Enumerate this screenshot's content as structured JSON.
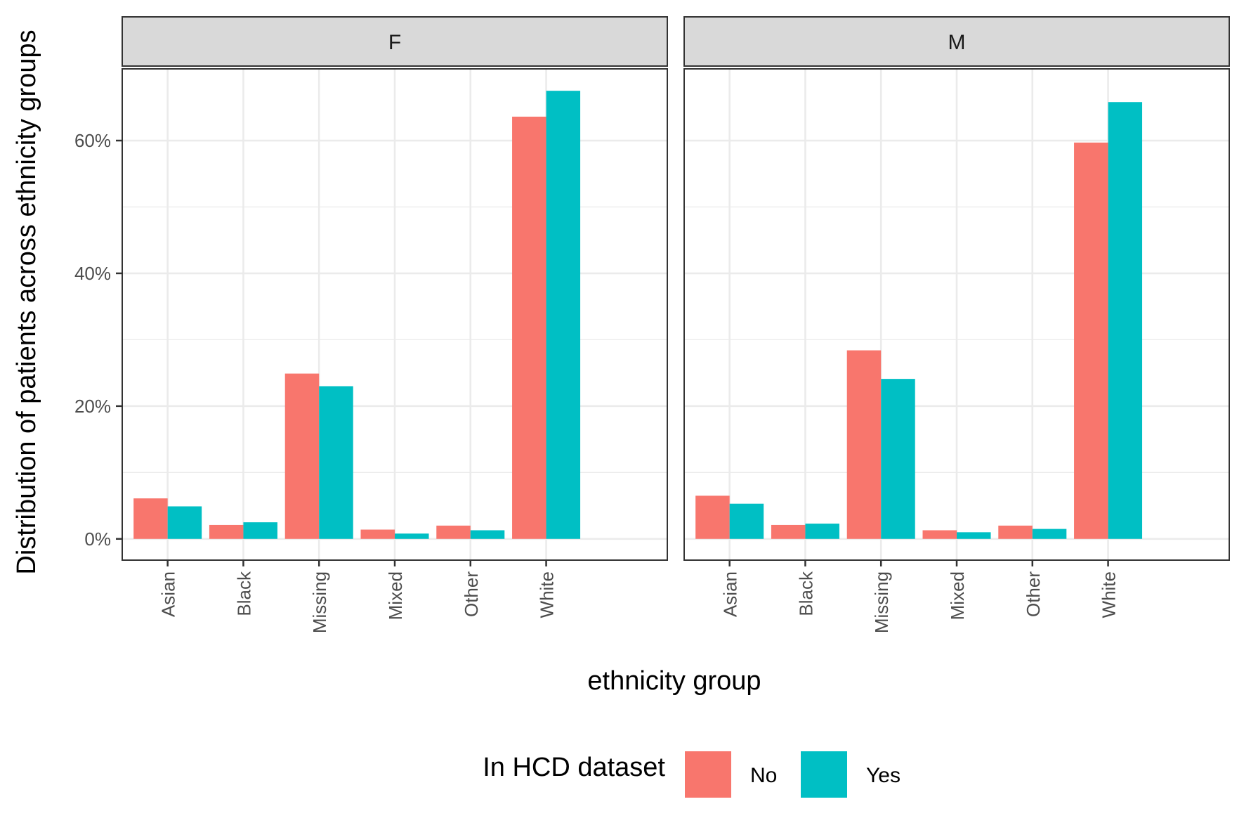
{
  "chart_data": {
    "type": "bar",
    "y_format": "percent",
    "ylim": [
      -0.032,
      0.708
    ],
    "yticks": [
      0,
      0.2,
      0.4,
      0.6
    ],
    "ytick_labels": [
      "0%",
      "20%",
      "40%",
      "60%"
    ],
    "categories": [
      "Asian",
      "Black",
      "Missing",
      "Mixed",
      "Other",
      "White"
    ],
    "xlabel": "ethnicity group",
    "ylabel": "Distribution of patients across ethnicity groups",
    "grid": true,
    "legend": {
      "title": "In HCD dataset",
      "position": "bottom",
      "entries": [
        {
          "label": "No",
          "color": "#F8766D"
        },
        {
          "label": "Yes",
          "color": "#00BFC4"
        }
      ]
    },
    "facets": [
      {
        "label": "F",
        "series": [
          {
            "name": "No",
            "values": [
              0.061,
              0.021,
              0.249,
              0.014,
              0.02,
              0.636
            ]
          },
          {
            "name": "Yes",
            "values": [
              0.049,
              0.025,
              0.23,
              0.008,
              0.013,
              0.675
            ]
          }
        ]
      },
      {
        "label": "M",
        "series": [
          {
            "name": "No",
            "values": [
              0.065,
              0.021,
              0.284,
              0.013,
              0.02,
              0.597
            ]
          },
          {
            "name": "Yes",
            "values": [
              0.053,
              0.023,
              0.241,
              0.01,
              0.015,
              0.658
            ]
          }
        ]
      }
    ]
  }
}
